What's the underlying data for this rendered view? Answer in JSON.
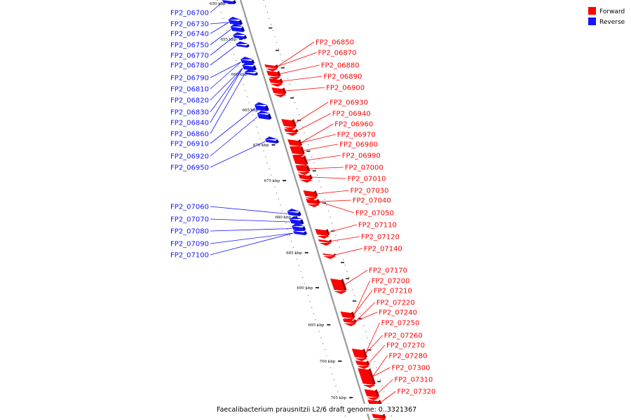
{
  "colors": {
    "forward": "#ff0000",
    "forward_dark": "#b00000",
    "reverse": "#1414ff",
    "reverse_dark": "#00008c",
    "backbone": "#999999",
    "tick": "#000000",
    "dot": "#666666"
  },
  "legend": {
    "forward_label": "Forward",
    "reverse_label": "Reverse"
  },
  "caption": "Faecalibacterium prausnitzii L2/6 draft genome: 0..3321367",
  "kbp_ticks": [
    "650 kbp",
    "655 kbp",
    "660 kbp",
    "665 kbp",
    "670 kbp",
    "675 kbp",
    "680 kbp",
    "685 kbp",
    "690 kbp",
    "695 kbp",
    "700 kbp",
    "705 kbp"
  ],
  "reverse_genes": [
    "FP2_06700",
    "FP2_06730",
    "FP2_06740",
    "FP2_06750",
    "FP2_06770",
    "FP2_06780",
    "FP2_06790",
    "FP2_06810",
    "FP2_06820",
    "FP2_06830",
    "FP2_06840",
    "FP2_06860",
    "FP2_06910",
    "FP2_06920",
    "FP2_06950",
    "FP2_07060",
    "FP2_07070",
    "FP2_07080",
    "FP2_07090",
    "FP2_07100"
  ],
  "forward_genes": [
    "FP2_06850",
    "FP2_06870",
    "FP2_06880",
    "FP2_06890",
    "FP2_06900",
    "FP2_06930",
    "FP2_06940",
    "FP2_06960",
    "FP2_06970",
    "FP2_06980",
    "FP2_06990",
    "FP2_07000",
    "FP2_07010",
    "FP2_07030",
    "FP2_07040",
    "FP2_07050",
    "FP2_07110",
    "FP2_07120",
    "FP2_07140",
    "FP2_07170",
    "FP2_07200",
    "FP2_07210",
    "FP2_07220",
    "FP2_07240",
    "FP2_07250",
    "FP2_07260",
    "FP2_07270",
    "FP2_07280",
    "FP2_07300",
    "FP2_07310",
    "FP2_07320"
  ]
}
